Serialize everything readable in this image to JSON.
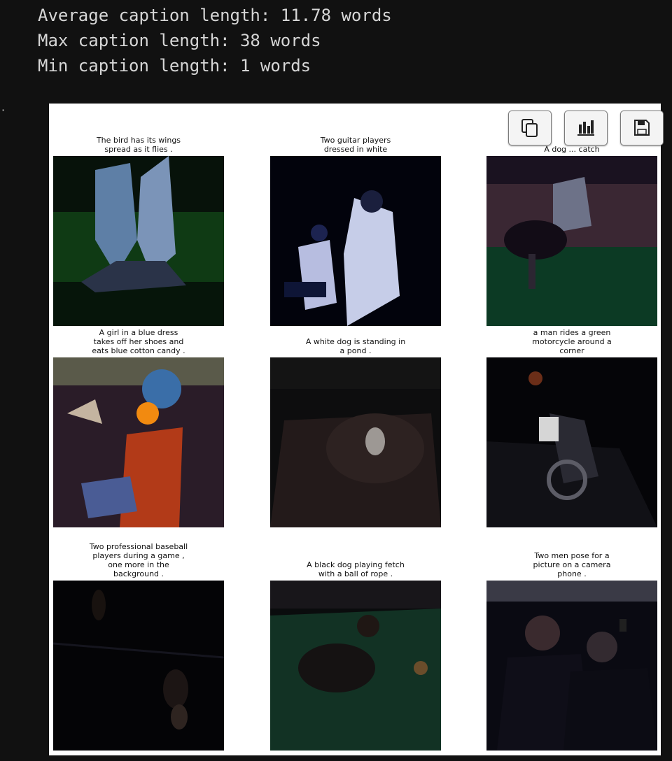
{
  "stats": {
    "avg": "Average caption length: 11.78 words",
    "max": "Max caption length: 38 words",
    "min": "Min caption length: 1 words"
  },
  "output_prompt": "·",
  "toolbar": {
    "copy_icon": "copy-icon",
    "chart_icon": "bar-chart-icon",
    "save_icon": "floppy-disk-icon"
  },
  "grid": [
    {
      "caption": "The bird has its wings spread as it flies ."
    },
    {
      "caption": "Two guitar players dressed in white"
    },
    {
      "caption": "A dog ... catch"
    },
    {
      "caption": "A girl in a blue dress takes off her shoes and eats blue cotton candy ."
    },
    {
      "caption": "A white dog is standing in a pond ."
    },
    {
      "caption": "a man rides a green motorcycle around a corner"
    },
    {
      "caption": "Two professional baseball players during a game , one more in the background ."
    },
    {
      "caption": "A black dog playing fetch with a ball of rope ."
    },
    {
      "caption": "Two men pose for a picture on a camera phone ."
    }
  ]
}
